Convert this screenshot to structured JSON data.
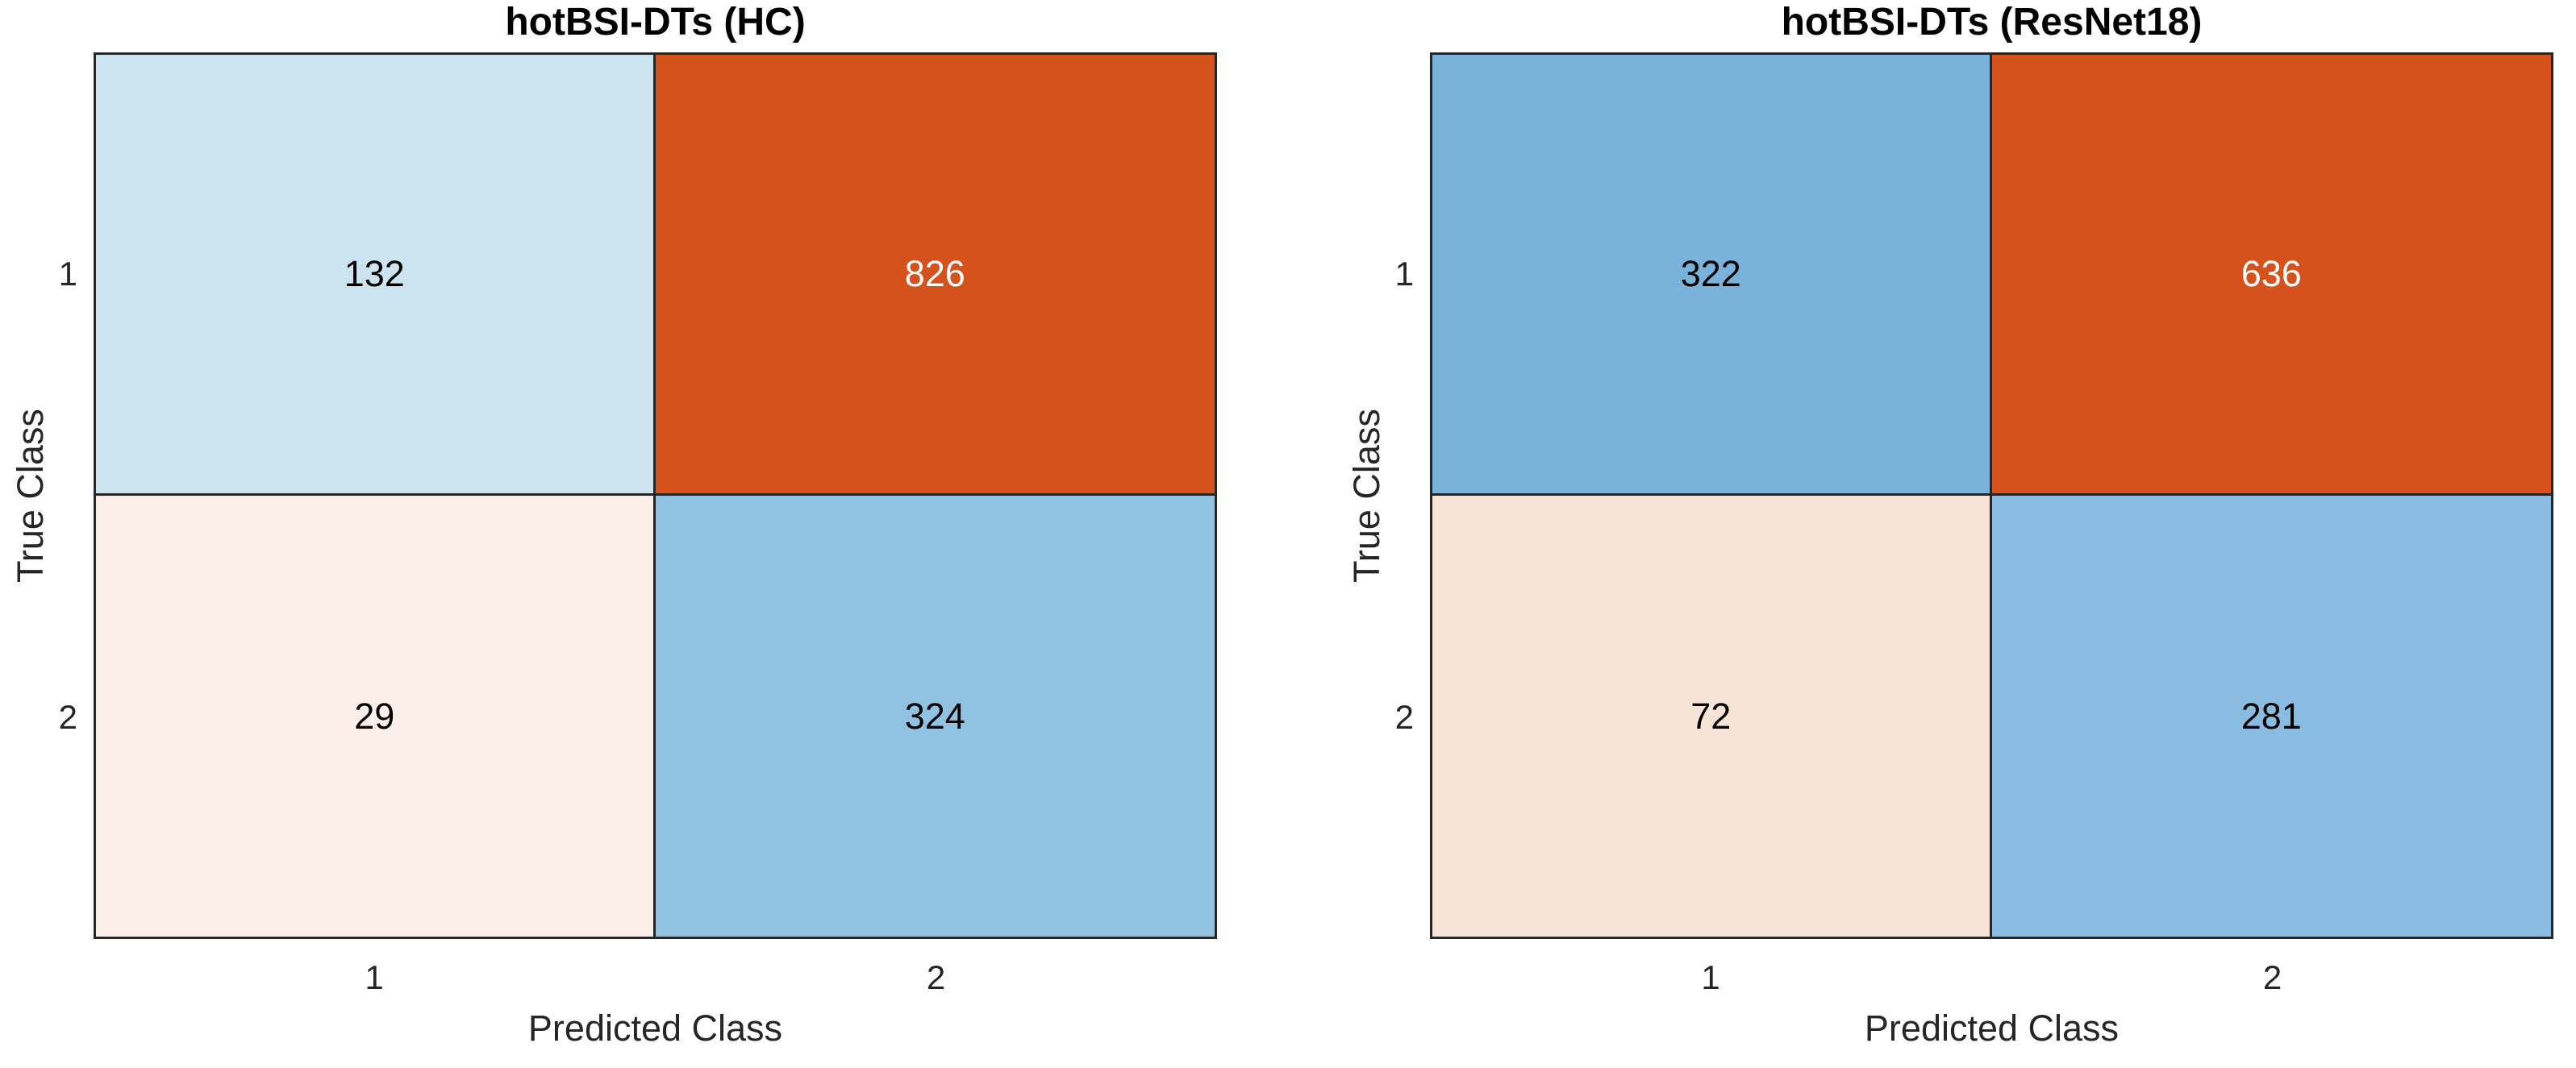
{
  "style": {
    "axis_color": "#262626",
    "background_color": "#ffffff",
    "title_color": "#000000"
  },
  "chart_data": [
    {
      "type": "heatmap",
      "title": "hotBSI-DTs (HC)",
      "xlabel": "Predicted Class",
      "ylabel": "True Class",
      "x_ticks": [
        "1",
        "2"
      ],
      "y_ticks": [
        "1",
        "2"
      ],
      "matrix": [
        [
          132,
          826
        ],
        [
          29,
          324
        ]
      ],
      "grid": true,
      "legend": "none",
      "cells": [
        {
          "row": "1",
          "col": "1",
          "value": "132",
          "bg": "#cce3f0",
          "fg": "#000000"
        },
        {
          "row": "1",
          "col": "2",
          "value": "826",
          "bg": "#d5521c",
          "fg": "#ffffff"
        },
        {
          "row": "2",
          "col": "1",
          "value": "29",
          "bg": "#fcefe9",
          "fg": "#000000"
        },
        {
          "row": "2",
          "col": "2",
          "value": "324",
          "bg": "#92c2e1",
          "fg": "#000000"
        }
      ]
    },
    {
      "type": "heatmap",
      "title": "hotBSI-DTs (ResNet18)",
      "xlabel": "Predicted Class",
      "ylabel": "True Class",
      "x_ticks": [
        "1",
        "2"
      ],
      "y_ticks": [
        "1",
        "2"
      ],
      "matrix": [
        [
          322,
          636
        ],
        [
          72,
          281
        ]
      ],
      "grid": true,
      "legend": "none",
      "cells": [
        {
          "row": "1",
          "col": "1",
          "value": "322",
          "bg": "#79b3dc",
          "fg": "#000000"
        },
        {
          "row": "1",
          "col": "2",
          "value": "636",
          "bg": "#d5521c",
          "fg": "#ffffff"
        },
        {
          "row": "2",
          "col": "1",
          "value": "72",
          "bg": "#f7e3d8",
          "fg": "#000000"
        },
        {
          "row": "2",
          "col": "2",
          "value": "281",
          "bg": "#89bce0",
          "fg": "#000000"
        }
      ]
    }
  ]
}
